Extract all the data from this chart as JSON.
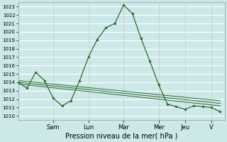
{
  "xlabel": "Pression niveau de la mer( hPa )",
  "bg_color": "#cce8e8",
  "grid_color": "#ffffff",
  "line_color": "#1a5c1a",
  "ylim": [
    1009.5,
    1023.5
  ],
  "yticks": [
    1010,
    1011,
    1012,
    1013,
    1014,
    1015,
    1016,
    1017,
    1018,
    1019,
    1020,
    1021,
    1022,
    1023
  ],
  "day_labels": [
    "Sam",
    "Lun",
    "Mar",
    "Mer",
    "Jeu",
    "V"
  ],
  "day_tick_positions": [
    8,
    16,
    24,
    32,
    38,
    44
  ],
  "xlim": [
    0,
    47
  ],
  "main_series_x": [
    0,
    2,
    4,
    6,
    8,
    10,
    12,
    14,
    16,
    18,
    20,
    22,
    24,
    26,
    28,
    30,
    32,
    34,
    36,
    38,
    40,
    42,
    44,
    46
  ],
  "main_series_y": [
    1014.0,
    1013.3,
    1015.2,
    1014.2,
    1012.1,
    1011.2,
    1011.8,
    1014.2,
    1017.0,
    1019.1,
    1020.5,
    1021.0,
    1023.2,
    1022.2,
    1019.2,
    1016.5,
    1013.7,
    1011.4,
    1011.1,
    1010.8,
    1011.2,
    1011.1,
    1011.0,
    1010.5
  ],
  "trend_lines": [
    {
      "x": [
        0,
        46
      ],
      "y": [
        1014.2,
        1011.8
      ]
    },
    {
      "x": [
        0,
        46
      ],
      "y": [
        1014.0,
        1011.5
      ]
    },
    {
      "x": [
        0,
        46
      ],
      "y": [
        1013.8,
        1011.2
      ]
    }
  ],
  "xlabel_fontsize": 7,
  "ytick_fontsize": 5,
  "xtick_fontsize": 6
}
